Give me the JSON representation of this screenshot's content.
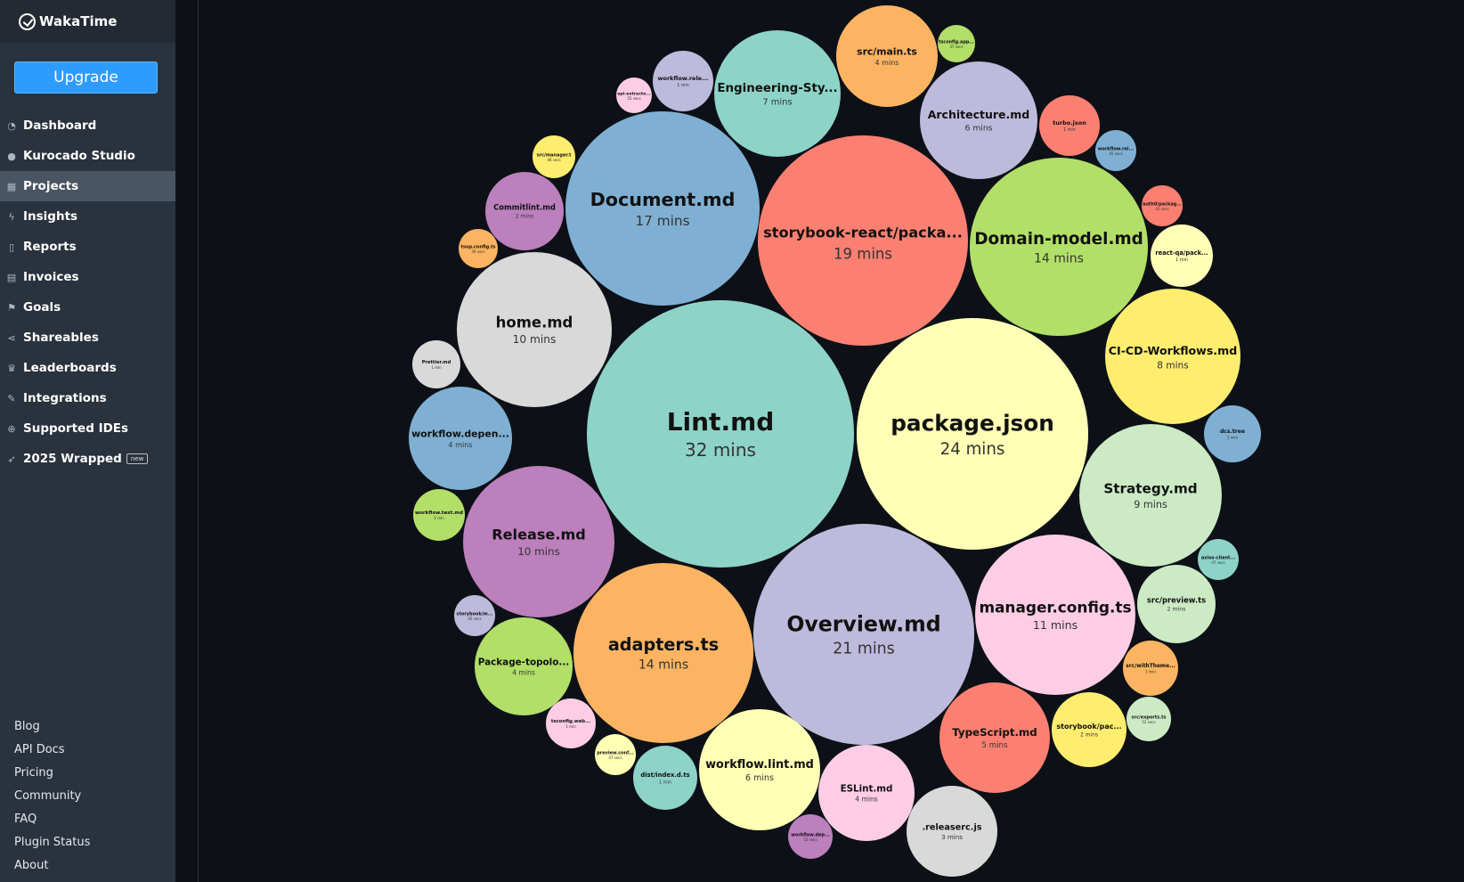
{
  "brand": {
    "name": "WakaTime",
    "icon": "wakatime-check-icon"
  },
  "upgrade_label": "Upgrade",
  "nav": [
    {
      "label": "Dashboard",
      "icon": "dashboard-gauge-icon",
      "active": false
    },
    {
      "label": "Kurocado Studio",
      "icon": "users-icon",
      "active": false
    },
    {
      "label": "Projects",
      "icon": "grid-icon",
      "active": true
    },
    {
      "label": "Insights",
      "icon": "bolt-icon",
      "active": false
    },
    {
      "label": "Reports",
      "icon": "file-pdf-icon",
      "active": false
    },
    {
      "label": "Invoices",
      "icon": "file-text-icon",
      "active": false
    },
    {
      "label": "Goals",
      "icon": "flag-icon",
      "active": false
    },
    {
      "label": "Shareables",
      "icon": "share-icon",
      "active": false
    },
    {
      "label": "Leaderboards",
      "icon": "trophy-icon",
      "active": false
    },
    {
      "label": "Integrations",
      "icon": "wrench-icon",
      "active": false
    },
    {
      "label": "Supported IDEs",
      "icon": "plus-circle-icon",
      "active": false
    },
    {
      "label": "2025 Wrapped",
      "icon": "rocket-icon",
      "active": false,
      "badge": "new"
    }
  ],
  "footer_links": [
    "Blog",
    "API Docs",
    "Pricing",
    "Community",
    "FAQ",
    "Plugin Status",
    "About"
  ],
  "files": [
    {
      "name": "Lint.md",
      "time": "32 mins",
      "color": "#8ed3c8"
    },
    {
      "name": "package.json",
      "time": "24 mins",
      "color": "#ffffb5"
    },
    {
      "name": "Overview.md",
      "time": "21 mins",
      "color": "#bdbadc"
    },
    {
      "name": "storybook-react/packa...",
      "time": "19 mins",
      "color": "#fb8072"
    },
    {
      "name": "Document.md",
      "time": "17 mins",
      "color": "#7fb0d4"
    },
    {
      "name": "Domain-model.md",
      "time": "14 mins",
      "color": "#b2df68"
    },
    {
      "name": "adapters.ts",
      "time": "14 mins",
      "color": "#fcb462"
    },
    {
      "name": "manager.config.ts",
      "time": "11 mins",
      "color": "#fccde5"
    },
    {
      "name": "home.md",
      "time": "10 mins",
      "color": "#d9d9d9"
    },
    {
      "name": "Release.md",
      "time": "10 mins",
      "color": "#bc80bd"
    },
    {
      "name": "Strategy.md",
      "time": "9 mins",
      "color": "#ccebc5"
    },
    {
      "name": "CI-CD-Workflows.md",
      "time": "8 mins",
      "color": "#ffed6f"
    },
    {
      "name": "Engineering-Sty...",
      "time": "7 mins",
      "color": "#8ed3c8"
    },
    {
      "name": "Architecture.md",
      "time": "6 mins",
      "color": "#bdbadc"
    },
    {
      "name": "workflow.lint.md",
      "time": "6 mins",
      "color": "#ffffb5"
    },
    {
      "name": "TypeScript.md",
      "time": "5 mins",
      "color": "#fb8072"
    },
    {
      "name": "src/main.ts",
      "time": "4 mins",
      "color": "#fcb462"
    },
    {
      "name": "ESLint.md",
      "time": "4 mins",
      "color": "#fccde5"
    },
    {
      "name": "workflow.depen...",
      "time": "4 mins",
      "color": "#7fb0d4"
    },
    {
      "name": "Package-topolo...",
      "time": "4 mins",
      "color": "#b2df68"
    },
    {
      "name": ".releaserc.js",
      "time": "3 mins",
      "color": "#d9d9d9"
    },
    {
      "name": "Commitlint.md",
      "time": "2 mins",
      "color": "#bc80bd"
    },
    {
      "name": "src/preview.ts",
      "time": "2 mins",
      "color": "#ccebc5"
    },
    {
      "name": "storybook/pac...",
      "time": "2 mins",
      "color": "#ffed6f"
    },
    {
      "name": "Prettier.md",
      "time": "1 min",
      "color": "#d9d9d9"
    },
    {
      "name": "workflow.test.md",
      "time": "1 min",
      "color": "#b2df68"
    },
    {
      "name": "dist/index.d.ts",
      "time": "1 min",
      "color": "#8ed3c8"
    },
    {
      "name": "workflow.rele...",
      "time": "1 min",
      "color": "#bdbadc"
    },
    {
      "name": "turbo.json",
      "time": "1 min",
      "color": "#fb8072"
    },
    {
      "name": "react-qa/pack...",
      "time": "1 min",
      "color": "#ffffb5"
    },
    {
      "name": "dcs.tree",
      "time": "1 min",
      "color": "#7fb0d4"
    },
    {
      "name": "src/withTheme...",
      "time": "1 min",
      "color": "#fcb462"
    },
    {
      "name": "tsconfig.web...",
      "time": "1 min",
      "color": "#fccde5"
    },
    {
      "name": "src/manager.t",
      "time": "48 secs",
      "color": "#ffed6f"
    },
    {
      "name": "preview.conf...",
      "time": "47 secs",
      "color": "#ffffb5"
    },
    {
      "name": "axios-client...",
      "time": "47 secs",
      "color": "#8ed3c8"
    },
    {
      "name": "workflow.rel...",
      "time": "45 secs",
      "color": "#7fb0d4"
    },
    {
      "name": "storybook/m...",
      "time": "45 secs",
      "color": "#bdbadc"
    },
    {
      "name": "auth0/packag...",
      "time": "45 secs",
      "color": "#fb8072"
    },
    {
      "name": "tsup.config.ts",
      "time": "39 secs",
      "color": "#fcb462"
    },
    {
      "name": "tsconfig.app...",
      "time": "37 secs",
      "color": "#b2df68"
    },
    {
      "name": "workflow.dep...",
      "time": "52 secs",
      "color": "#bc80bd"
    },
    {
      "name": "src/exports.ts",
      "time": "52 secs",
      "color": "#ccebc5"
    },
    {
      "name": "api-extracto...",
      "time": "55 secs",
      "color": "#fccde5"
    }
  ]
}
